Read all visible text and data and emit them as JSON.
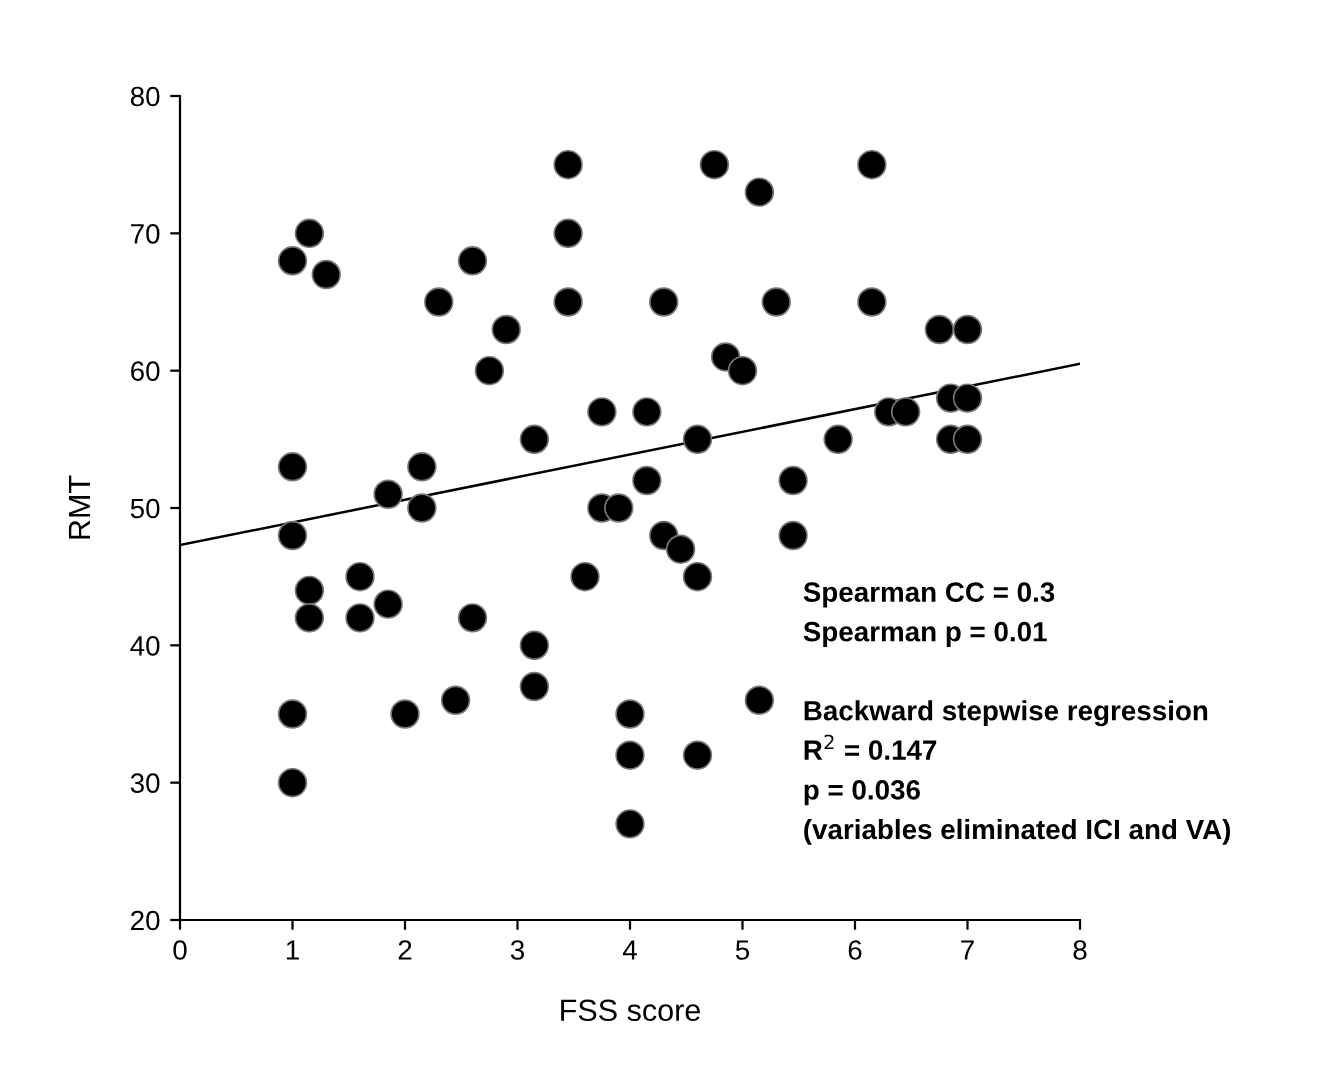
{
  "chart_data": {
    "type": "scatter",
    "xlabel": "FSS score",
    "ylabel": "RMT",
    "xlim": [
      0,
      8
    ],
    "ylim": [
      20,
      80
    ],
    "xticks": [
      0,
      1,
      2,
      3,
      4,
      5,
      6,
      7,
      8
    ],
    "yticks": [
      20,
      30,
      40,
      50,
      60,
      70,
      80
    ],
    "grid": false,
    "legend": false,
    "series": [
      {
        "color": "#000000",
        "marker": "circle",
        "x": [
          1,
          1.15,
          1.3,
          1,
          1,
          1,
          1,
          1.15,
          1.15,
          1.6,
          1.6,
          1.85,
          1.85,
          2,
          2.15,
          2.15,
          2.3,
          2.45,
          2.6,
          2.6,
          2.75,
          2.9,
          3.15,
          3.15,
          3.15,
          3.45,
          3.45,
          3.45,
          3.6,
          3.75,
          3.75,
          3.9,
          4,
          4,
          4,
          4.15,
          4.15,
          4.3,
          4.3,
          4.45,
          4.6,
          4.6,
          4.6,
          4.75,
          4.85,
          5,
          5.15,
          5.15,
          5.3,
          5.45,
          5.45,
          5.85,
          6.15,
          6.15,
          6.3,
          6.45,
          6.75,
          6.85,
          6.85,
          7,
          7,
          7
        ],
        "values": [
          68,
          70,
          67,
          53,
          48,
          35,
          30,
          44,
          42,
          45,
          42,
          51,
          43,
          35,
          53,
          50,
          65,
          36,
          68,
          42,
          60,
          63,
          55,
          40,
          37,
          75,
          70,
          65,
          45,
          57,
          50,
          50,
          35,
          32,
          27,
          57,
          52,
          65,
          48,
          47,
          55,
          45,
          32,
          75,
          61,
          60,
          73,
          36,
          65,
          52,
          48,
          55,
          75,
          65,
          57,
          57,
          63,
          58,
          55,
          63,
          58,
          55
        ]
      },
      {
        "type": "line",
        "color": "#000000",
        "x": [
          0,
          8
        ],
        "values": [
          47.3,
          60.5
        ],
        "line_style": "solid"
      }
    ],
    "annotations": [
      "Spearman CC = 0.3",
      "Spearman p = 0.01",
      "Backward stepwise regression",
      "R$^{2}$ = 0.147",
      "p = 0.036",
      "(variables eliminated ICI and VA)"
    ]
  }
}
